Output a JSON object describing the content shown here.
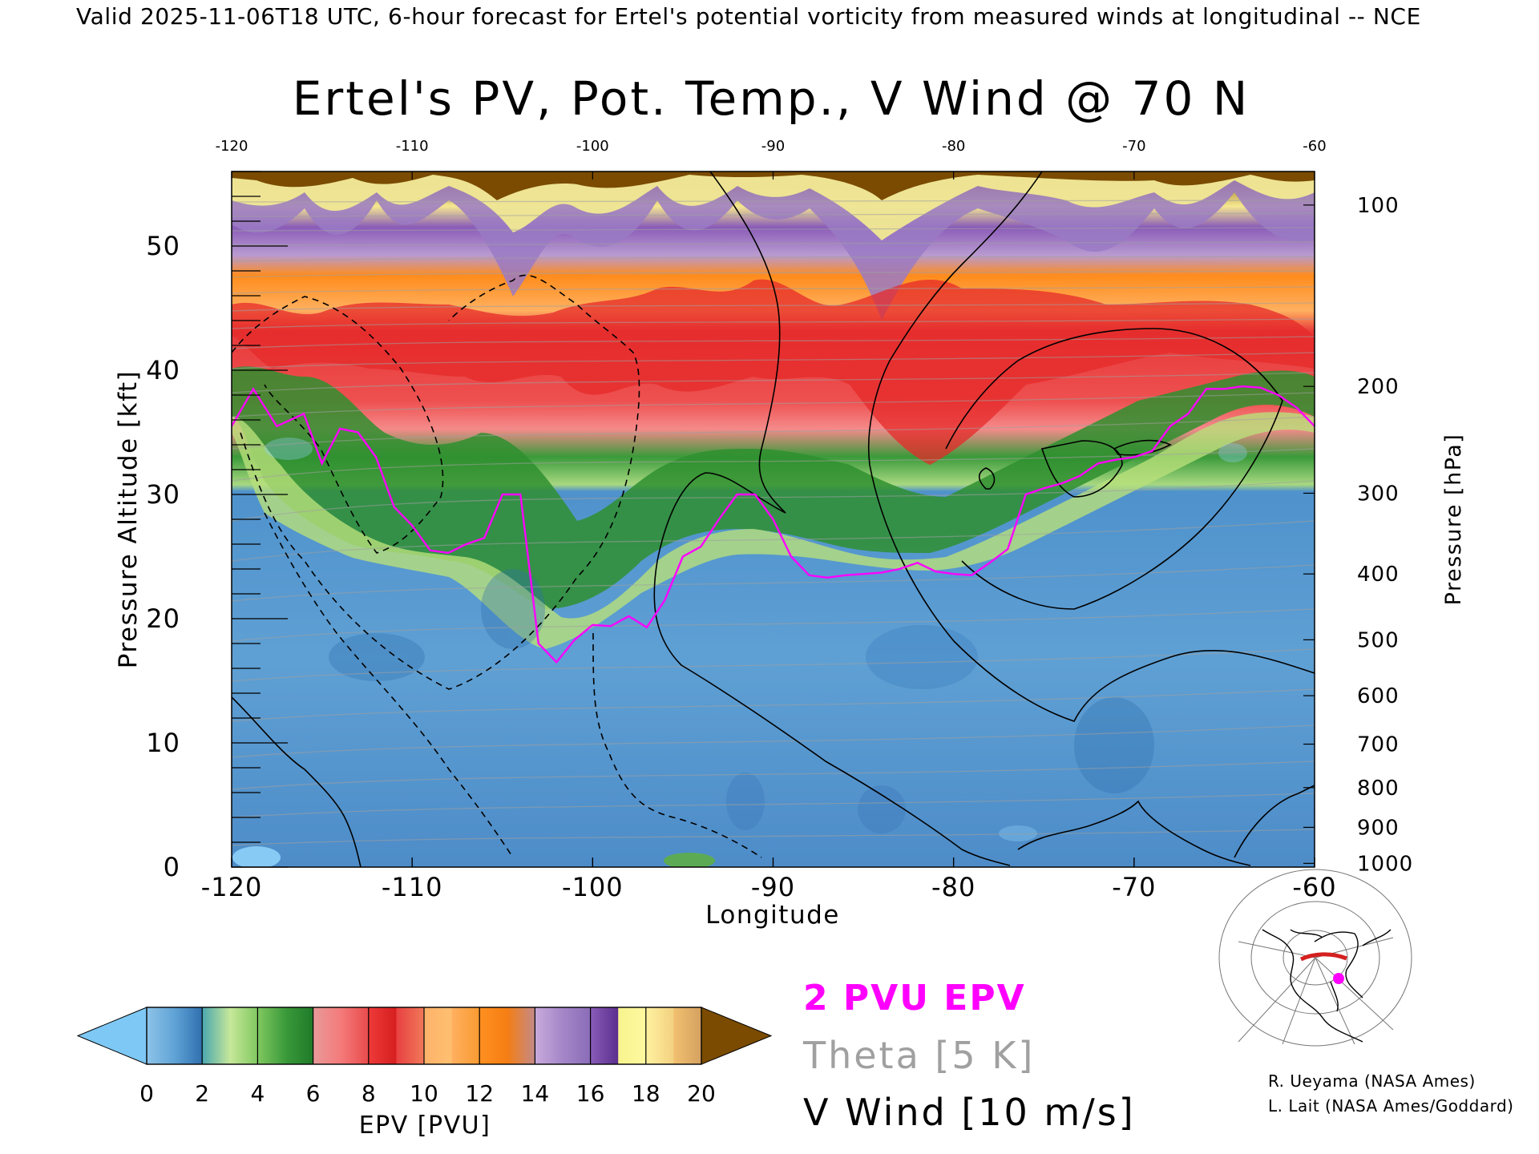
{
  "header": {
    "valid_line": "Valid 2025-11-06T18 UTC, 6-hour forecast for Ertel's potential vorticity from measured winds at longitudinal -- NCE"
  },
  "chart_data": {
    "type": "heatmap",
    "title": "Ertel's PV, Pot. Temp., V Wind @ 70 N",
    "xlabel": "Longitude",
    "ylabel": "Pressure Altitude [kft]",
    "y2label": "Pressure [hPa]",
    "xlim": [
      -120,
      -60
    ],
    "ylim": [
      0,
      56
    ],
    "x_ticks": [
      "-120",
      "-110",
      "-100",
      "-90",
      "-80",
      "-70",
      "-60"
    ],
    "x_ticks_top": [
      "-120",
      "-110",
      "-100",
      "-90",
      "-80",
      "-70",
      "-60"
    ],
    "y_ticks": [
      "0",
      "10",
      "20",
      "30",
      "40",
      "50"
    ],
    "pressure_ticks": [
      {
        "label": "100",
        "kft": 53.3
      },
      {
        "label": "200",
        "kft": 38.7
      },
      {
        "label": "300",
        "kft": 30.1
      },
      {
        "label": "400",
        "kft": 23.6
      },
      {
        "label": "500",
        "kft": 18.3
      },
      {
        "label": "600",
        "kft": 13.8
      },
      {
        "label": "700",
        "kft": 9.9
      },
      {
        "label": "800",
        "kft": 6.4
      },
      {
        "label": "900",
        "kft": 3.2
      },
      {
        "label": "1000",
        "kft": 0.3
      }
    ],
    "tropopause_2pvu": {
      "longitude": [
        -120,
        -118.8,
        -117.5,
        -116,
        -115,
        -114,
        -113,
        -112,
        -111,
        -110,
        -109,
        -108,
        -107,
        -106,
        -105,
        -104,
        -103,
        -102,
        -101,
        -100,
        -99,
        -98,
        -97,
        -96,
        -95,
        -94,
        -93,
        -92,
        -91,
        -90,
        -89,
        -88,
        -87,
        -86,
        -85,
        -84,
        -83,
        -82,
        -81,
        -80,
        -79,
        -78,
        -77,
        -76,
        -75,
        -74,
        -73,
        -72,
        -71,
        -70,
        -69,
        -68,
        -67,
        -66,
        -65,
        -64,
        -63,
        -62,
        -61,
        -60
      ],
      "altitude_kft": [
        35.5,
        38.5,
        35.5,
        36.5,
        32.5,
        35.3,
        35,
        33,
        29,
        27.5,
        25.5,
        25.3,
        26,
        26.5,
        30,
        30,
        18,
        16.5,
        18.3,
        19.5,
        19.4,
        20.2,
        19.3,
        21.5,
        25,
        25.8,
        28,
        30,
        30,
        28,
        25,
        23.5,
        23.3,
        23.5,
        23.6,
        23.7,
        24,
        24.5,
        23.8,
        23.6,
        23.5,
        24.5,
        25.6,
        30,
        30.5,
        30.9,
        31.5,
        32.5,
        32.8,
        33,
        33.5,
        35.5,
        36.5,
        38.5,
        38.5,
        38.7,
        38.6,
        38,
        37,
        35.5
      ]
    },
    "legend": {
      "epv_label": "2 PVU EPV",
      "theta_label": "Theta [5 K]",
      "vwind_label": "V Wind [10 m/s]",
      "epv_color": "#ff00ff",
      "theta_color": "#a0a0a0",
      "vwind_color": "#000000"
    },
    "colorbar": {
      "label": "EPV [PVU]",
      "ticks": [
        "0",
        "2",
        "4",
        "6",
        "8",
        "10",
        "12",
        "14",
        "16",
        "18",
        "20"
      ],
      "under_color": "#7ec8f5",
      "over_color": "#7a4b00",
      "bins": [
        {
          "from": 0,
          "to": 1,
          "colors": [
            "#8ec3e8",
            "#5fa3d6"
          ]
        },
        {
          "from": 1,
          "to": 2,
          "colors": [
            "#5fa3d6",
            "#2f6fae"
          ]
        },
        {
          "from": 2,
          "to": 3,
          "colors": [
            "#4aa7b0",
            "#c7e89a"
          ]
        },
        {
          "from": 3,
          "to": 4,
          "colors": [
            "#c7e89a",
            "#80c860"
          ]
        },
        {
          "from": 4,
          "to": 5,
          "colors": [
            "#80c860",
            "#3a9a3a"
          ]
        },
        {
          "from": 5,
          "to": 6,
          "colors": [
            "#3a9a3a",
            "#1f7a28"
          ]
        },
        {
          "from": 6,
          "to": 7,
          "colors": [
            "#e89a9a",
            "#f57a7a"
          ]
        },
        {
          "from": 7,
          "to": 8,
          "colors": [
            "#f57a7a",
            "#e84a4a"
          ]
        },
        {
          "from": 8,
          "to": 9,
          "colors": [
            "#ee3a3a",
            "#d61e1e"
          ]
        },
        {
          "from": 9,
          "to": 10,
          "colors": [
            "#e84040",
            "#f07a5a"
          ]
        },
        {
          "from": 10,
          "to": 11,
          "colors": [
            "#fdb26a",
            "#ffc070"
          ]
        },
        {
          "from": 11,
          "to": 12,
          "colors": [
            "#ffb060",
            "#f99a30"
          ]
        },
        {
          "from": 12,
          "to": 13,
          "colors": [
            "#ff9020",
            "#f57e14"
          ]
        },
        {
          "from": 13,
          "to": 14,
          "colors": [
            "#f57e14",
            "#c28a8a"
          ]
        },
        {
          "from": 14,
          "to": 15,
          "colors": [
            "#c8aadc",
            "#a486c8"
          ]
        },
        {
          "from": 15,
          "to": 16,
          "colors": [
            "#a486c8",
            "#8a6cb8"
          ]
        },
        {
          "from": 16,
          "to": 17,
          "colors": [
            "#8a5cb8",
            "#5a2e8e"
          ]
        },
        {
          "from": 17,
          "to": 18,
          "colors": [
            "#f7f48e",
            "#fff8a0"
          ]
        },
        {
          "from": 18,
          "to": 19,
          "colors": [
            "#fff2a0",
            "#f2d080"
          ]
        },
        {
          "from": 19,
          "to": 20,
          "colors": [
            "#f2c070",
            "#d4a060"
          ]
        }
      ]
    },
    "credits": [
      "R. Ueyama (NASA Ames)",
      "L. Lait (NASA Ames/Goddard)"
    ]
  }
}
